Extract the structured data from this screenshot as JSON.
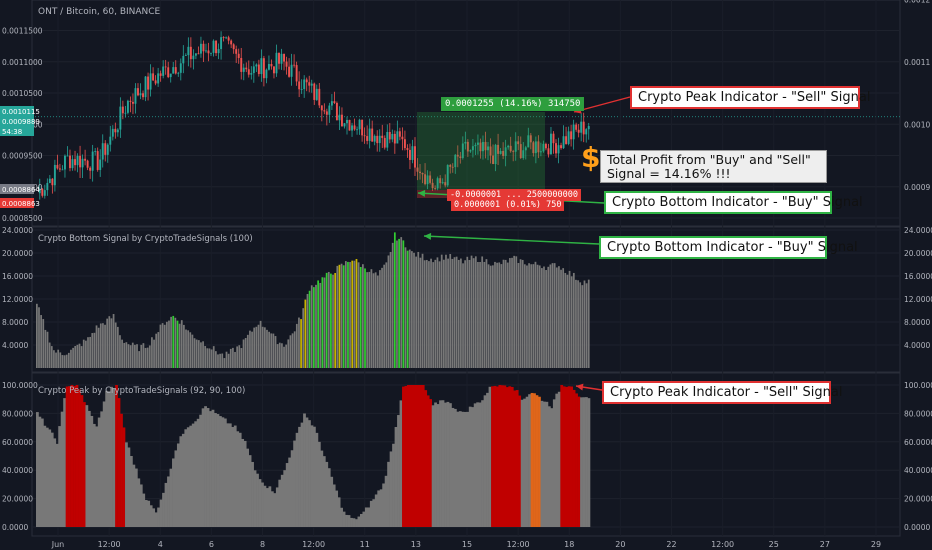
{
  "header": {
    "symbol_title": "ONT / Bitcoin, 60, BINANCE",
    "bottom_pane_title": "Crypto Bottom Signal by CryptoTradeSignals (100)",
    "peak_pane_title": "Crypto Peak by CryptoTradeSignals (92, 90, 100)"
  },
  "price_axis": {
    "left_ticks": [
      "0.0011500",
      "0.0011000",
      "0.0010500",
      "0.0010000",
      "0.0009500",
      "0.0009000",
      "0.0008500"
    ],
    "right_ticks": [
      "0.0012",
      "0.0011",
      "0.0010",
      "0.0009"
    ],
    "left_badges": [
      {
        "text": "0.0010115",
        "color": "#26a69a"
      },
      {
        "text": "0.0009889",
        "color": "#26a69a"
      },
      {
        "text": "54:38",
        "color": "#26a69a"
      },
      {
        "text": "0.0008864",
        "color": "#787b86"
      },
      {
        "text": "0.0008863",
        "color": "#e53935"
      }
    ]
  },
  "bottom_axis": {
    "ticks": [
      "24.0000",
      "20.0000",
      "16.0000",
      "12.0000",
      "8.0000",
      "4.0000"
    ]
  },
  "peak_axis": {
    "ticks": [
      "100.0000",
      "80.0000",
      "60.0000",
      "40.0000",
      "20.0000",
      "0.0000"
    ]
  },
  "time_axis": {
    "labels": [
      "Jun",
      "12:00",
      "4",
      "6",
      "8",
      "12:00",
      "11",
      "13",
      "15",
      "12:00",
      "18",
      "20",
      "22",
      "12:00",
      "25",
      "27",
      "29"
    ]
  },
  "position_tool": {
    "profit_label": "0.0001255 (14.16%) 314750",
    "stop_label": "-0.0000001 ... 2500000000",
    "loss_label": "0.0000001 (0.01%) 750",
    "profit_color": "#2e9e3e",
    "loss_color": "#e53935"
  },
  "annotations": {
    "peak_sell_top": "Crypto Peak Indicator - \"Sell\" Signal",
    "profit_text": "Total Profit from \"Buy\" and \"Sell\" Signal = 14.16% !!!",
    "dollar": "$",
    "bottom_buy_main": "Crypto Bottom Indicator - \"Buy\" Signal",
    "bottom_buy_pane": "Crypto Bottom Indicator - \"Buy\" Signal",
    "peak_sell_pane": "Crypto Peak Indicator - \"Sell\" Signal"
  },
  "colors": {
    "background": "#131722",
    "candle_up": "#26a69a",
    "candle_down": "#ef5350",
    "histogram_grey": "#787878",
    "bottom_signal_green": "#32cd32",
    "bottom_signal_yellow": "#c8b400",
    "peak_signal_red": "#c00000",
    "peak_signal_orange": "#e0661a",
    "arrow_red": "#e03131",
    "arrow_green": "#2fb344"
  },
  "chart_data": [
    {
      "type": "candlestick",
      "title": "ONT / Bitcoin, 60, BINANCE",
      "x": [
        "Jun 1",
        "Jun 2",
        "Jun 3",
        "Jun 4",
        "Jun 5",
        "Jun 6",
        "Jun 7",
        "Jun 8",
        "Jun 9",
        "Jun 10",
        "Jun 11",
        "Jun 12",
        "Jun 13",
        "Jun 14",
        "Jun 15",
        "Jun 16",
        "Jun 17",
        "Jun 18",
        "Jun 19"
      ],
      "close": [
        0.00089,
        0.000945,
        0.00094,
        0.00104,
        0.00108,
        0.00111,
        0.00113,
        0.001085,
        0.0011,
        0.00105,
        0.00101,
        0.000985,
        0.00097,
        0.000895,
        0.00096,
        0.00095,
        0.000965,
        0.00097,
        0.001
      ],
      "ylim": [
        0.00085,
        0.00117
      ]
    },
    {
      "type": "bar",
      "title": "Crypto Bottom Signal by CryptoTradeSignals (100)",
      "ylim": [
        0,
        24
      ],
      "values": [
        11,
        7,
        3,
        2.5,
        3,
        4,
        5,
        7,
        8,
        9,
        5,
        4,
        3.5,
        4,
        6,
        8,
        9,
        8,
        6,
        5,
        4,
        3,
        2,
        3,
        4,
        6,
        8,
        7,
        5,
        4,
        6,
        9,
        14,
        15,
        16,
        17,
        18,
        19,
        18,
        17,
        16,
        18,
        23,
        22,
        20,
        19.5,
        19,
        19,
        19.5,
        19,
        18.5,
        19,
        19,
        18.5,
        18,
        18.5,
        19,
        18.5,
        18,
        18,
        17.5,
        18,
        17,
        16,
        15
      ],
      "signal_indices_green": [
        16,
        32,
        33,
        34,
        36,
        38,
        42,
        43
      ],
      "signal_indices_yellow": [
        31,
        35,
        37
      ]
    },
    {
      "type": "area",
      "title": "Crypto Peak by CryptoTradeSignals (92, 90, 100)",
      "ylim": [
        0,
        100
      ],
      "values": [
        80,
        70,
        60,
        100,
        100,
        85,
        70,
        95,
        100,
        60,
        40,
        20,
        10,
        30,
        55,
        70,
        75,
        85,
        80,
        75,
        70,
        60,
        40,
        30,
        25,
        40,
        60,
        80,
        70,
        50,
        30,
        10,
        5,
        10,
        20,
        30,
        60,
        100,
        100,
        100,
        85,
        90,
        85,
        80,
        85,
        90,
        100,
        100,
        100,
        90,
        95,
        90,
        85,
        100,
        100,
        90
      ],
      "signal_indices_red": [
        3,
        4,
        8,
        37,
        38,
        39,
        46,
        47,
        48,
        53,
        54
      ],
      "signal_indices_orange": [
        50
      ]
    }
  ]
}
